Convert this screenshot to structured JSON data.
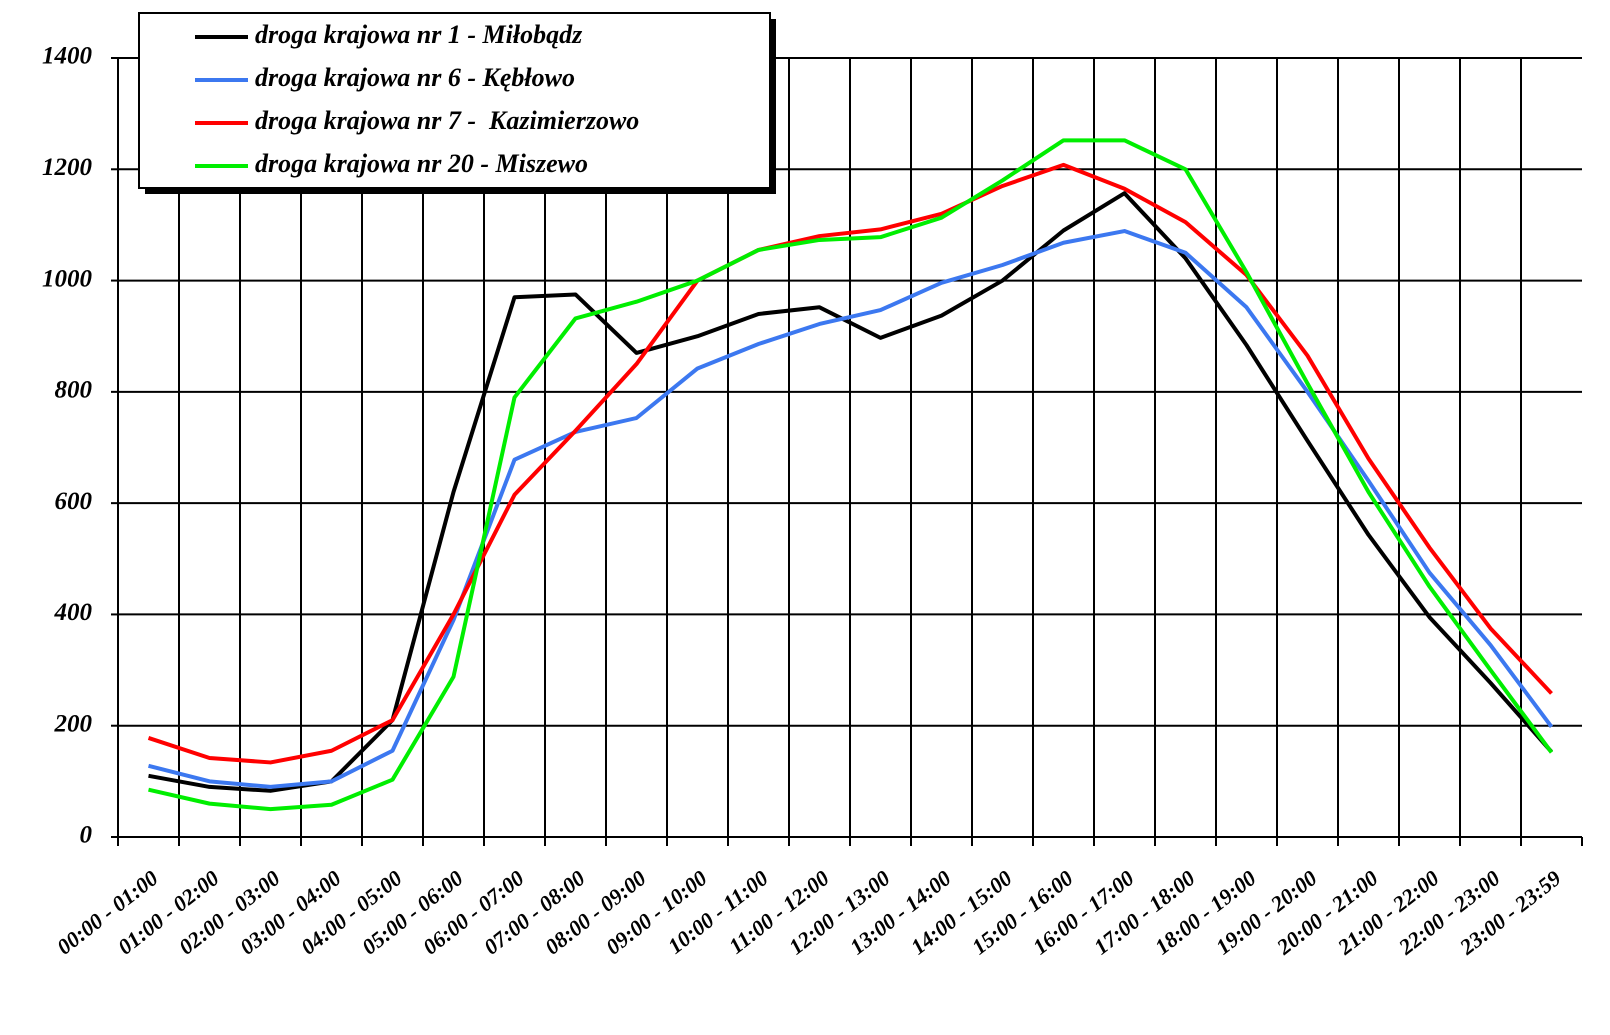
{
  "chart_data": {
    "type": "line",
    "categories": [
      "00:00 - 01:00",
      "01:00 - 02:00",
      "02:00 - 03:00",
      "03:00 - 04:00",
      "04:00 - 05:00",
      "05:00 - 06:00",
      "06:00 - 07:00",
      "07:00 - 08:00",
      "08:00 - 09:00",
      "09:00 - 10:00",
      "10:00 - 11:00",
      "11:00 - 12:00",
      "12:00 - 13:00",
      "13:00 - 14:00",
      "14:00 - 15:00",
      "15:00 - 16:00",
      "16:00 - 17:00",
      "17:00 - 18:00",
      "18:00 - 19:00",
      "19:00 - 20:00",
      "20:00 - 21:00",
      "21:00 - 22:00",
      "22:00 - 23:00",
      "23:00 - 23:59"
    ],
    "series": [
      {
        "name": "droga krajowa nr 1 - Miłobądz",
        "color": "#000000",
        "values": [
          110,
          90,
          83,
          100,
          210,
          620,
          970,
          975,
          870,
          900,
          940,
          952,
          897,
          937,
          1000,
          1090,
          1157,
          1040,
          884,
          712,
          543,
          395,
          277,
          153
        ]
      },
      {
        "name": "droga krajowa nr 6 - Kębłowo",
        "color": "#3c78f0",
        "values": [
          128,
          100,
          90,
          100,
          155,
          390,
          678,
          728,
          753,
          842,
          886,
          922,
          947,
          996,
          1028,
          1068,
          1089,
          1050,
          952,
          800,
          640,
          475,
          345,
          198
        ]
      },
      {
        "name": "droga krajowa nr 7 -  Kazimierzowo",
        "color": "#ff0000",
        "values": [
          178,
          142,
          134,
          155,
          210,
          400,
          615,
          730,
          850,
          1000,
          1055,
          1080,
          1092,
          1120,
          1170,
          1208,
          1165,
          1105,
          1010,
          865,
          680,
          520,
          375,
          258
        ]
      },
      {
        "name": "droga krajowa nr 20 - Miszewo",
        "color": "#00ee00",
        "values": [
          85,
          60,
          50,
          58,
          103,
          288,
          790,
          932,
          962,
          1000,
          1055,
          1073,
          1078,
          1113,
          1180,
          1252,
          1252,
          1200,
          1015,
          815,
          620,
          450,
          300,
          152
        ]
      }
    ],
    "ylim": [
      0,
      1400
    ],
    "yticks": [
      0,
      200,
      400,
      600,
      800,
      1000,
      1200,
      1400
    ],
    "grid": true,
    "legend": "upper left"
  }
}
